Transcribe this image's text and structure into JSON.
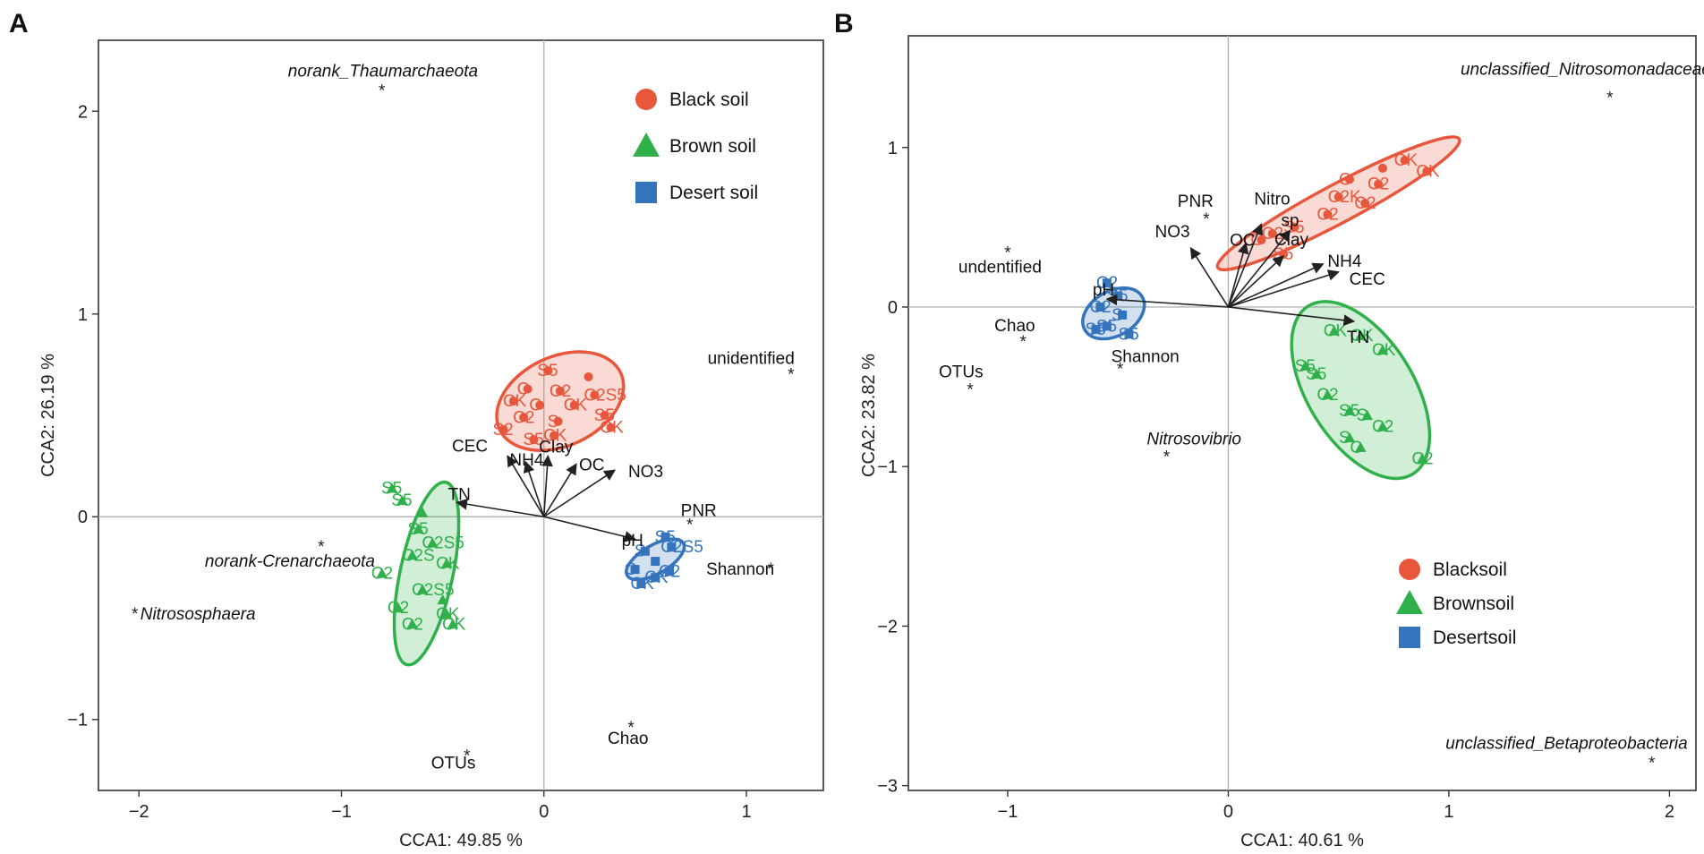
{
  "chart_data": [
    {
      "panel": "A",
      "type": "scatter",
      "xlabel": "CCA1: 49.85 %",
      "ylabel": "CCA2: 26.19 %",
      "xlim": [
        -2.2,
        1.38
      ],
      "ylim": [
        -1.35,
        2.35
      ],
      "xticks": [
        -2,
        -1,
        0,
        1
      ],
      "yticks": [
        -1,
        0,
        1,
        2
      ],
      "legend": {
        "position": "top-right",
        "entries": [
          {
            "label": "Black soil",
            "shape": "circle",
            "color": "#e8563c"
          },
          {
            "label": "Brown soil",
            "shape": "triangle",
            "color": "#2fb04a"
          },
          {
            "label": "Desert soil",
            "shape": "square",
            "color": "#3474bc"
          }
        ]
      },
      "groups": [
        {
          "name": "Black soil",
          "color": "#e8563c",
          "shape": "circle",
          "ellipse": {
            "cx": 0.08,
            "cy": 0.57,
            "rx": 0.33,
            "ry": 0.22,
            "angle_deg": -25
          },
          "points": [
            {
              "x": 0.02,
              "y": 0.72,
              "label": "S5"
            },
            {
              "x": 0.22,
              "y": 0.69,
              "label": ""
            },
            {
              "x": -0.08,
              "y": 0.63,
              "label": "C"
            },
            {
              "x": 0.08,
              "y": 0.62,
              "label": "C2"
            },
            {
              "x": 0.25,
              "y": 0.6,
              "label": "C2S5"
            },
            {
              "x": -0.15,
              "y": 0.57,
              "label": "CK"
            },
            {
              "x": -0.02,
              "y": 0.55,
              "label": "C"
            },
            {
              "x": 0.15,
              "y": 0.55,
              "label": "CK"
            },
            {
              "x": 0.3,
              "y": 0.5,
              "label": "S5"
            },
            {
              "x": -0.1,
              "y": 0.49,
              "label": "C2"
            },
            {
              "x": 0.07,
              "y": 0.47,
              "label": "S"
            },
            {
              "x": 0.33,
              "y": 0.44,
              "label": "CK"
            },
            {
              "x": -0.2,
              "y": 0.43,
              "label": "S2"
            },
            {
              "x": 0.05,
              "y": 0.4,
              "label": "CK"
            },
            {
              "x": -0.05,
              "y": 0.38,
              "label": "S5"
            }
          ]
        },
        {
          "name": "Brown soil",
          "color": "#2fb04a",
          "shape": "triangle",
          "ellipse": {
            "cx": -0.58,
            "cy": -0.28,
            "rx": 0.13,
            "ry": 0.46,
            "angle_deg": 12
          },
          "points": [
            {
              "x": -0.75,
              "y": 0.14,
              "label": "S5"
            },
            {
              "x": -0.7,
              "y": 0.08,
              "label": "S5"
            },
            {
              "x": -0.6,
              "y": 0.02,
              "label": ""
            },
            {
              "x": -0.62,
              "y": -0.06,
              "label": "S5"
            },
            {
              "x": -0.55,
              "y": -0.13,
              "label": "C2S5"
            },
            {
              "x": -0.65,
              "y": -0.19,
              "label": "C2S"
            },
            {
              "x": -0.48,
              "y": -0.23,
              "label": "CK"
            },
            {
              "x": -0.8,
              "y": -0.28,
              "label": "C2"
            },
            {
              "x": -0.6,
              "y": -0.36,
              "label": "C2S5"
            },
            {
              "x": -0.5,
              "y": -0.41,
              "label": ""
            },
            {
              "x": -0.72,
              "y": -0.45,
              "label": "C2"
            },
            {
              "x": -0.48,
              "y": -0.48,
              "label": "CK"
            },
            {
              "x": -0.65,
              "y": -0.53,
              "label": "C2"
            },
            {
              "x": -0.45,
              "y": -0.53,
              "label": "CK"
            }
          ]
        },
        {
          "name": "Desert soil",
          "color": "#3474bc",
          "shape": "square",
          "ellipse": {
            "cx": 0.55,
            "cy": -0.21,
            "rx": 0.16,
            "ry": 0.07,
            "angle_deg": -30
          },
          "points": [
            {
              "x": 0.6,
              "y": -0.1,
              "label": "S5"
            },
            {
              "x": 0.63,
              "y": -0.15,
              "label": "C2S5"
            },
            {
              "x": 0.5,
              "y": -0.17,
              "label": "S"
            },
            {
              "x": 0.55,
              "y": -0.22,
              "label": ""
            },
            {
              "x": 0.45,
              "y": -0.26,
              "label": "C"
            },
            {
              "x": 0.62,
              "y": -0.27,
              "label": "C2"
            },
            {
              "x": 0.55,
              "y": -0.3,
              "label": "CK"
            },
            {
              "x": 0.48,
              "y": -0.33,
              "label": "CK"
            }
          ]
        }
      ],
      "arrows": [
        {
          "label": "TN",
          "x": -0.43,
          "y": 0.07
        },
        {
          "label": "pH",
          "x": 0.45,
          "y": -0.11
        },
        {
          "label": "NO3",
          "x": 0.35,
          "y": 0.23
        },
        {
          "label": "OC",
          "x": 0.16,
          "y": 0.26
        },
        {
          "label": "Clay",
          "x": 0.02,
          "y": 0.3
        },
        {
          "label": "CEC",
          "x": -0.18,
          "y": 0.3
        },
        {
          "label": "NH4",
          "x": -0.09,
          "y": 0.27
        }
      ],
      "species": [
        {
          "label": "norank_Thaumarchaeota",
          "x": -0.8,
          "y": 2.1,
          "italic": true
        },
        {
          "label": "norank-Crenarchaeota",
          "x": -1.1,
          "y": -0.15,
          "italic": true
        },
        {
          "label": "Nitrososphaera",
          "x": -2.02,
          "y": -0.48,
          "italic": true
        },
        {
          "label": "unidentified",
          "x": 1.22,
          "y": 0.7,
          "italic": false
        },
        {
          "label": "Shannon",
          "x": 1.12,
          "y": -0.26,
          "italic": false
        },
        {
          "label": "PNR",
          "x": 0.72,
          "y": -0.04,
          "italic": false
        },
        {
          "label": "Chao",
          "x": 0.43,
          "y": -1.04,
          "italic": false
        },
        {
          "label": "OTUs",
          "x": -0.38,
          "y": -1.18,
          "italic": false
        }
      ]
    },
    {
      "panel": "B",
      "type": "scatter",
      "xlabel": "CCA1: 40.61 %",
      "ylabel": "CCA2: 23.82 %",
      "xlim": [
        -1.45,
        2.12
      ],
      "ylim": [
        -3.03,
        1.7
      ],
      "xticks": [
        -1,
        0,
        1,
        2
      ],
      "yticks": [
        -3,
        -2,
        -1,
        0,
        1
      ],
      "legend": {
        "position": "bottom-right",
        "entries": [
          {
            "label": "Blacksoil",
            "shape": "circle",
            "color": "#e8563c"
          },
          {
            "label": "Brownsoil",
            "shape": "triangle",
            "color": "#2fb04a"
          },
          {
            "label": "Desertsoil",
            "shape": "square",
            "color": "#3474bc"
          }
        ]
      },
      "groups": [
        {
          "name": "Blacksoil",
          "color": "#e8563c",
          "shape": "circle",
          "ellipse": {
            "cx": 0.5,
            "cy": 0.65,
            "rx": 0.62,
            "ry": 0.12,
            "angle_deg": -28
          },
          "points": [
            {
              "x": 0.8,
              "y": 0.92,
              "label": "CK"
            },
            {
              "x": 0.7,
              "y": 0.87,
              "label": ""
            },
            {
              "x": 0.9,
              "y": 0.85,
              "label": "CK"
            },
            {
              "x": 0.55,
              "y": 0.8,
              "label": "C"
            },
            {
              "x": 0.68,
              "y": 0.77,
              "label": "C2"
            },
            {
              "x": 0.5,
              "y": 0.69,
              "label": "C2K"
            },
            {
              "x": 0.62,
              "y": 0.65,
              "label": "C2"
            },
            {
              "x": 0.45,
              "y": 0.58,
              "label": "C2"
            },
            {
              "x": 0.3,
              "y": 0.5,
              "label": "S5"
            },
            {
              "x": 0.2,
              "y": 0.46,
              "label": "C2"
            },
            {
              "x": 0.15,
              "y": 0.42,
              "label": "C"
            },
            {
              "x": 0.25,
              "y": 0.33,
              "label": "S5"
            }
          ]
        },
        {
          "name": "Brownsoil",
          "color": "#2fb04a",
          "shape": "triangle",
          "ellipse": {
            "cx": 0.6,
            "cy": -0.52,
            "rx": 0.24,
            "ry": 0.62,
            "angle_deg": -32
          },
          "points": [
            {
              "x": 0.48,
              "y": -0.15,
              "label": "CK"
            },
            {
              "x": 0.6,
              "y": -0.18,
              "label": "CK"
            },
            {
              "x": 0.7,
              "y": -0.27,
              "label": "CK"
            },
            {
              "x": 0.35,
              "y": -0.37,
              "label": "S5"
            },
            {
              "x": 0.4,
              "y": -0.42,
              "label": "S5"
            },
            {
              "x": 0.45,
              "y": -0.55,
              "label": "C2"
            },
            {
              "x": 0.55,
              "y": -0.65,
              "label": "S5"
            },
            {
              "x": 0.63,
              "y": -0.68,
              "label": "S"
            },
            {
              "x": 0.7,
              "y": -0.75,
              "label": "C2"
            },
            {
              "x": 0.55,
              "y": -0.82,
              "label": "S"
            },
            {
              "x": 0.6,
              "y": -0.88,
              "label": "C"
            },
            {
              "x": 0.88,
              "y": -0.95,
              "label": "C2"
            }
          ]
        },
        {
          "name": "Desertsoil",
          "color": "#3474bc",
          "shape": "square",
          "ellipse": {
            "cx": -0.52,
            "cy": -0.04,
            "rx": 0.15,
            "ry": 0.14,
            "angle_deg": -30
          },
          "points": [
            {
              "x": -0.55,
              "y": 0.15,
              "label": "C2"
            },
            {
              "x": -0.5,
              "y": 0.07,
              "label": "S5"
            },
            {
              "x": -0.58,
              "y": 0.0,
              "label": "C2"
            },
            {
              "x": -0.48,
              "y": -0.05,
              "label": "S"
            },
            {
              "x": -0.55,
              "y": -0.12,
              "label": "S5"
            },
            {
              "x": -0.45,
              "y": -0.17,
              "label": "S5"
            },
            {
              "x": -0.6,
              "y": -0.14,
              "label": "S5"
            }
          ]
        }
      ],
      "arrows": [
        {
          "label": "TN",
          "x": 0.57,
          "y": -0.09
        },
        {
          "label": "pH",
          "x": -0.55,
          "y": 0.05
        },
        {
          "label": "NO3",
          "x": -0.17,
          "y": 0.37
        },
        {
          "label": "OC",
          "x": 0.08,
          "y": 0.4
        },
        {
          "label": "Nitro",
          "x": 0.15,
          "y": 0.52
        },
        {
          "label": "sp",
          "x": 0.28,
          "y": 0.48
        },
        {
          "label": "Clay",
          "x": 0.25,
          "y": 0.32
        },
        {
          "label": "NH4",
          "x": 0.43,
          "y": 0.27
        },
        {
          "label": "CEC",
          "x": 0.5,
          "y": 0.22
        }
      ],
      "species": [
        {
          "label": "unclassified_Nitrosomonadaceae",
          "x": 1.73,
          "y": 1.31,
          "italic": true
        },
        {
          "label": "unclassified_Betaproteobacteria",
          "x": 1.92,
          "y": -2.86,
          "italic": true
        },
        {
          "label": "Nitrosovibrio",
          "x": -0.28,
          "y": -0.94,
          "italic": true
        },
        {
          "label": "undentified",
          "x": -1.0,
          "y": 0.34,
          "italic": false
        },
        {
          "label": "Chao",
          "x": -0.93,
          "y": -0.22,
          "italic": false
        },
        {
          "label": "OTUs",
          "x": -1.17,
          "y": -0.52,
          "italic": false
        },
        {
          "label": "Shannon",
          "x": -0.49,
          "y": -0.39,
          "italic": false
        },
        {
          "label": "PNR",
          "x": -0.1,
          "y": 0.55,
          "italic": false
        }
      ]
    }
  ]
}
